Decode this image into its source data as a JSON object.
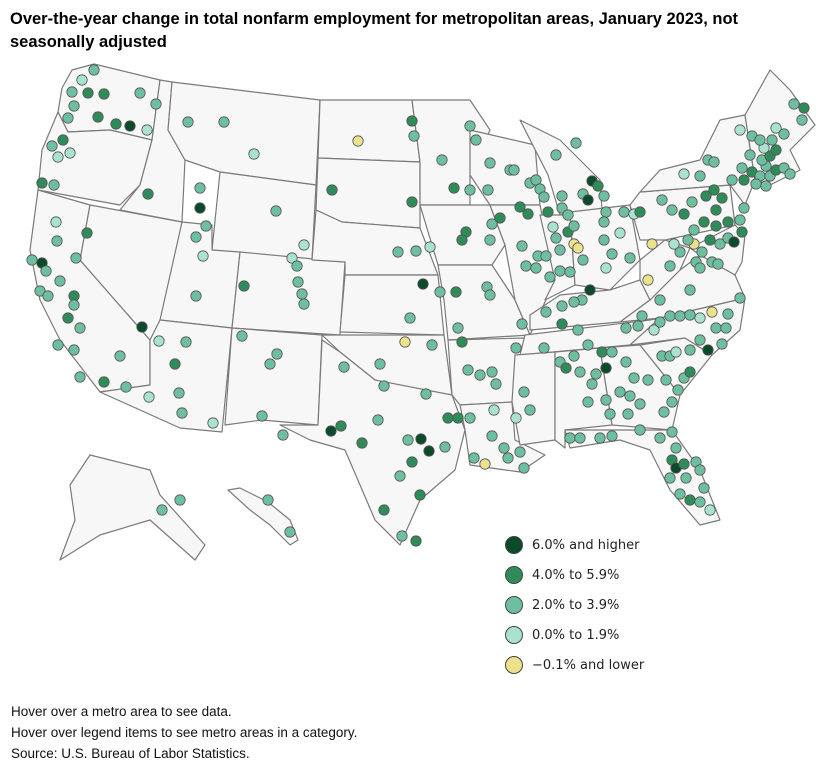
{
  "title": "Over-the-year change in total nonfarm employment for metropolitan areas, January 2023, not seasonally adjusted",
  "legend": [
    {
      "key": "c6",
      "label": "6.0% and higher",
      "color": "#0b4a2a"
    },
    {
      "key": "c4",
      "label": "4.0% to 5.9%",
      "color": "#2f8c5a"
    },
    {
      "key": "c2",
      "label": "2.0% to 3.9%",
      "color": "#6ebfa0"
    },
    {
      "key": "c0",
      "label": "0.0% to 1.9%",
      "color": "#a9e3cf"
    },
    {
      "key": "cn",
      "label": "−0.1% and lower",
      "color": "#ece18c"
    }
  ],
  "notes": {
    "line1": "Hover over a metro area to see data.",
    "line2": "Hover over legend items to see metro areas in a category.",
    "source": "Source: U.S. Bureau of Labor Statistics."
  }
}
